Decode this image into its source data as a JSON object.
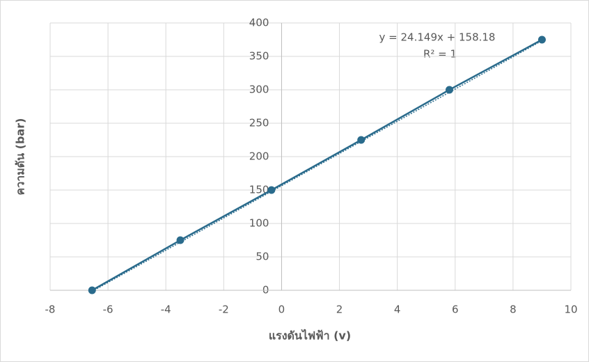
{
  "chart_data": {
    "type": "scatter",
    "x_label": "แรงดันไฟฟ้า  (v)",
    "y_label": "ความดัน  (bar)",
    "series": [
      {
        "color": "#2a6b8c",
        "x": [
          -6.55,
          -3.5,
          -0.35,
          2.75,
          5.8,
          9
        ],
        "values": [
          0,
          75,
          150,
          225,
          300,
          375
        ]
      }
    ],
    "annotations": [
      "y = 24.149x + 158.18",
      "R² = 1"
    ],
    "xlim": [
      -8,
      10
    ],
    "xticks": [
      -8,
      -6,
      -4,
      -2,
      0,
      2,
      4,
      6,
      8,
      10
    ],
    "ylim": [
      0,
      400
    ],
    "yticks": [
      0,
      50,
      100,
      150,
      200,
      250,
      300,
      350,
      400
    ],
    "grid": true
  }
}
